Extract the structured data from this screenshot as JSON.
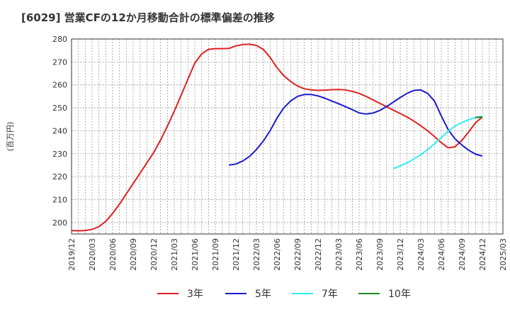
{
  "chart_data": {
    "type": "line",
    "title": "[6029]  営業CFの12か月移動合計の標準偏差の推移",
    "ylabel": "(百万円)",
    "xlabel": "",
    "ylim": [
      195,
      280
    ],
    "yticks": [
      200,
      210,
      220,
      230,
      240,
      250,
      260,
      270,
      280
    ],
    "xlim": [
      "2019-12",
      "2025-03"
    ],
    "xticks": [
      "2019/12",
      "2020/03",
      "2020/06",
      "2020/09",
      "2020/12",
      "2021/03",
      "2021/06",
      "2021/09",
      "2021/12",
      "2022/03",
      "2022/06",
      "2022/09",
      "2022/12",
      "2023/03",
      "2023/06",
      "2023/09",
      "2023/12",
      "2024/03",
      "2024/06",
      "2024/09",
      "2024/12",
      "2025/03"
    ],
    "grid": true,
    "legend_position": "bottom",
    "series": [
      {
        "name": "3年",
        "color": "#e02020",
        "x": [
          "2019-12",
          "2020-01",
          "2020-02",
          "2020-03",
          "2020-04",
          "2020-05",
          "2020-06",
          "2020-07",
          "2020-08",
          "2020-09",
          "2020-10",
          "2020-11",
          "2020-12",
          "2021-01",
          "2021-02",
          "2021-03",
          "2021-04",
          "2021-05",
          "2021-06",
          "2021-07",
          "2021-08",
          "2021-09",
          "2021-10",
          "2021-11",
          "2021-12",
          "2022-01",
          "2022-02",
          "2022-03",
          "2022-04",
          "2022-05",
          "2022-06",
          "2022-07",
          "2022-08",
          "2022-09",
          "2022-10",
          "2022-11",
          "2022-12",
          "2023-01",
          "2023-02",
          "2023-03",
          "2023-04",
          "2023-05",
          "2023-06",
          "2023-07",
          "2023-08",
          "2023-09",
          "2023-10",
          "2023-11",
          "2023-12",
          "2024-01",
          "2024-02",
          "2024-03",
          "2024-04",
          "2024-05",
          "2024-06",
          "2024-07",
          "2024-08",
          "2024-09",
          "2024-10",
          "2024-11",
          "2024-12"
        ],
        "values": [
          196.5,
          196.4,
          196.5,
          197.0,
          198.2,
          200.5,
          204.0,
          208.0,
          212.5,
          217.0,
          221.5,
          226.0,
          230.5,
          236.0,
          242.0,
          248.5,
          255.5,
          262.5,
          269.5,
          273.5,
          275.5,
          275.8,
          275.8,
          275.9,
          277.0,
          277.6,
          277.7,
          277.2,
          275.5,
          272.0,
          267.5,
          264.0,
          261.5,
          259.5,
          258.3,
          257.8,
          257.6,
          257.7,
          257.9,
          258.0,
          257.8,
          257.2,
          256.3,
          255.0,
          253.5,
          252.0,
          250.5,
          249.0,
          247.5,
          246.0,
          244.2,
          242.2,
          240.0,
          237.5,
          234.8,
          232.6,
          233.0,
          235.8,
          239.5,
          243.5,
          246.0
        ]
      },
      {
        "name": "5年",
        "color": "#1a1acc",
        "x": [
          "2021-11",
          "2021-12",
          "2022-01",
          "2022-02",
          "2022-03",
          "2022-04",
          "2022-05",
          "2022-06",
          "2022-07",
          "2022-08",
          "2022-09",
          "2022-10",
          "2022-11",
          "2022-12",
          "2023-01",
          "2023-02",
          "2023-03",
          "2023-04",
          "2023-05",
          "2023-06",
          "2023-07",
          "2023-08",
          "2023-09",
          "2023-10",
          "2023-11",
          "2023-12",
          "2024-01",
          "2024-02",
          "2024-03",
          "2024-04",
          "2024-05",
          "2024-06",
          "2024-07",
          "2024-08",
          "2024-09",
          "2024-10",
          "2024-11",
          "2024-12"
        ],
        "values": [
          225.0,
          225.5,
          226.8,
          228.8,
          231.8,
          235.5,
          240.0,
          245.5,
          250.0,
          253.0,
          255.0,
          255.8,
          255.8,
          255.2,
          254.2,
          253.0,
          251.8,
          250.5,
          249.2,
          247.8,
          247.3,
          247.7,
          248.8,
          250.5,
          252.5,
          254.5,
          256.3,
          257.6,
          257.8,
          256.3,
          253.0,
          246.5,
          240.5,
          236.5,
          233.8,
          231.5,
          229.8,
          229.0
        ]
      },
      {
        "name": "7年",
        "color": "#33eeee",
        "x": [
          "2023-11",
          "2023-12",
          "2024-01",
          "2024-02",
          "2024-03",
          "2024-04",
          "2024-05",
          "2024-06",
          "2024-07",
          "2024-08",
          "2024-09",
          "2024-10",
          "2024-11",
          "2024-12"
        ],
        "values": [
          223.5,
          224.7,
          226.0,
          227.7,
          229.6,
          231.8,
          234.3,
          237.0,
          239.8,
          242.0,
          243.6,
          244.8,
          245.8,
          246.3
        ]
      },
      {
        "name": "10年",
        "color": "#1a8a1a",
        "x": [
          "2024-11",
          "2024-12"
        ],
        "values": [
          245.8,
          245.9
        ]
      }
    ]
  }
}
